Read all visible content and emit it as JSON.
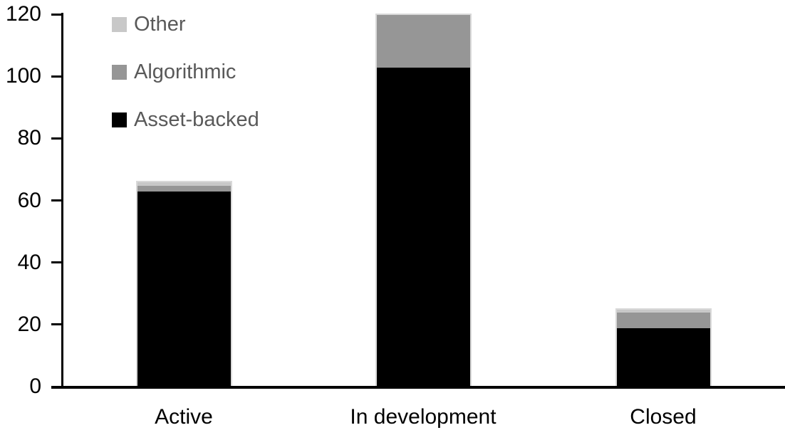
{
  "chart_data": {
    "type": "bar",
    "stacked": true,
    "title": "",
    "xlabel": "",
    "ylabel": "",
    "categories": [
      "Active",
      "In development",
      "Closed"
    ],
    "series": [
      {
        "name": "Asset-backed",
        "color": "#000000",
        "values": [
          63,
          103,
          19
        ]
      },
      {
        "name": "Algorithmic",
        "color": "#969696",
        "values": [
          2,
          17,
          5
        ]
      },
      {
        "name": "Other",
        "color": "#c8c8c8",
        "values": [
          1,
          0,
          1
        ]
      }
    ],
    "stack_totals": [
      66,
      120,
      25
    ],
    "ylim": [
      0,
      120
    ],
    "yticks": [
      0,
      20,
      40,
      60,
      80,
      100,
      120
    ],
    "grid": false,
    "legend": {
      "position": "top-left",
      "order": [
        "Other",
        "Algorithmic",
        "Asset-backed"
      ],
      "text_color": "#595959"
    },
    "colors": {
      "axis": "#000000",
      "bar_outline": "#d9d9d9",
      "background": "#ffffff",
      "tick_label": "#000000",
      "category_label": "#000000"
    }
  }
}
